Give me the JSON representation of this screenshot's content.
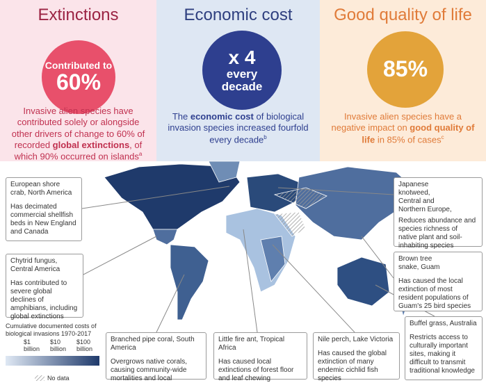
{
  "panels": [
    {
      "title": "Extinctions",
      "circle": [
        "Contributed to",
        "60%"
      ],
      "text": [
        {
          "t": "Invasive alien species have contributed solely or alongside other drivers of change to 60% of recorded "
        },
        {
          "t": "global extinctions"
        },
        {
          "t": ", of which 90% occurred on islands"
        },
        {
          "t": "a"
        }
      ]
    },
    {
      "title": "Economic cost",
      "circle": [
        "x 4",
        "every",
        "decade"
      ],
      "text": [
        {
          "t": "The "
        },
        {
          "t": "economic cost"
        },
        {
          "t": " of biological invasion species increased fourfold every decade"
        },
        {
          "t": "b"
        }
      ]
    },
    {
      "title": "Good quality of life",
      "circle": [
        "85%"
      ],
      "text": [
        {
          "t": "Invasive alien species have a negative impact on "
        },
        {
          "t": "good quality of life"
        },
        {
          "t": " in 85% of cases"
        },
        {
          "t": "c"
        }
      ]
    }
  ],
  "callouts": [
    {
      "title": "European shore crab, North America",
      "text": "Has decimated commercial shellfish beds in New England and Canada"
    },
    {
      "title": "Chytrid fungus, Central America",
      "text": "Has contributed to severe global declines of amphibians, including global extinctions"
    },
    {
      "title": "Branched pipe coral, South America",
      "text": "Overgrows native corals, causing community-wide mortalities and local extinctions"
    },
    {
      "title": "Little fire ant, Tropical Africa",
      "text": "Has caused local extinctions of forest floor and leaf chewing invertebrates"
    },
    {
      "title": "Nile perch, Lake Victoria",
      "text": "Has caused the global extinction of many endemic cichlid fish species"
    },
    {
      "title": "Buffel grass, Australia",
      "text": "Restricts access to culturally important sites, making it difficult to transmit traditional knowledge"
    },
    {
      "title": "Brown tree snake, Guam",
      "text": "Has caused the local extinction of most resident populations of Guam's 25 bird species"
    },
    {
      "title": "Japanese knotweed, Central and Northern Europe,",
      "text": "Reduces abundance and species richness of native plant and soil-inhabiting species"
    }
  ],
  "legend": {
    "title": "Cumulative documented costs of biological invasions 1970-2017",
    "labels": [
      "$1 billion",
      "$10 billion",
      "$100 billion"
    ],
    "no_data": "No data"
  }
}
